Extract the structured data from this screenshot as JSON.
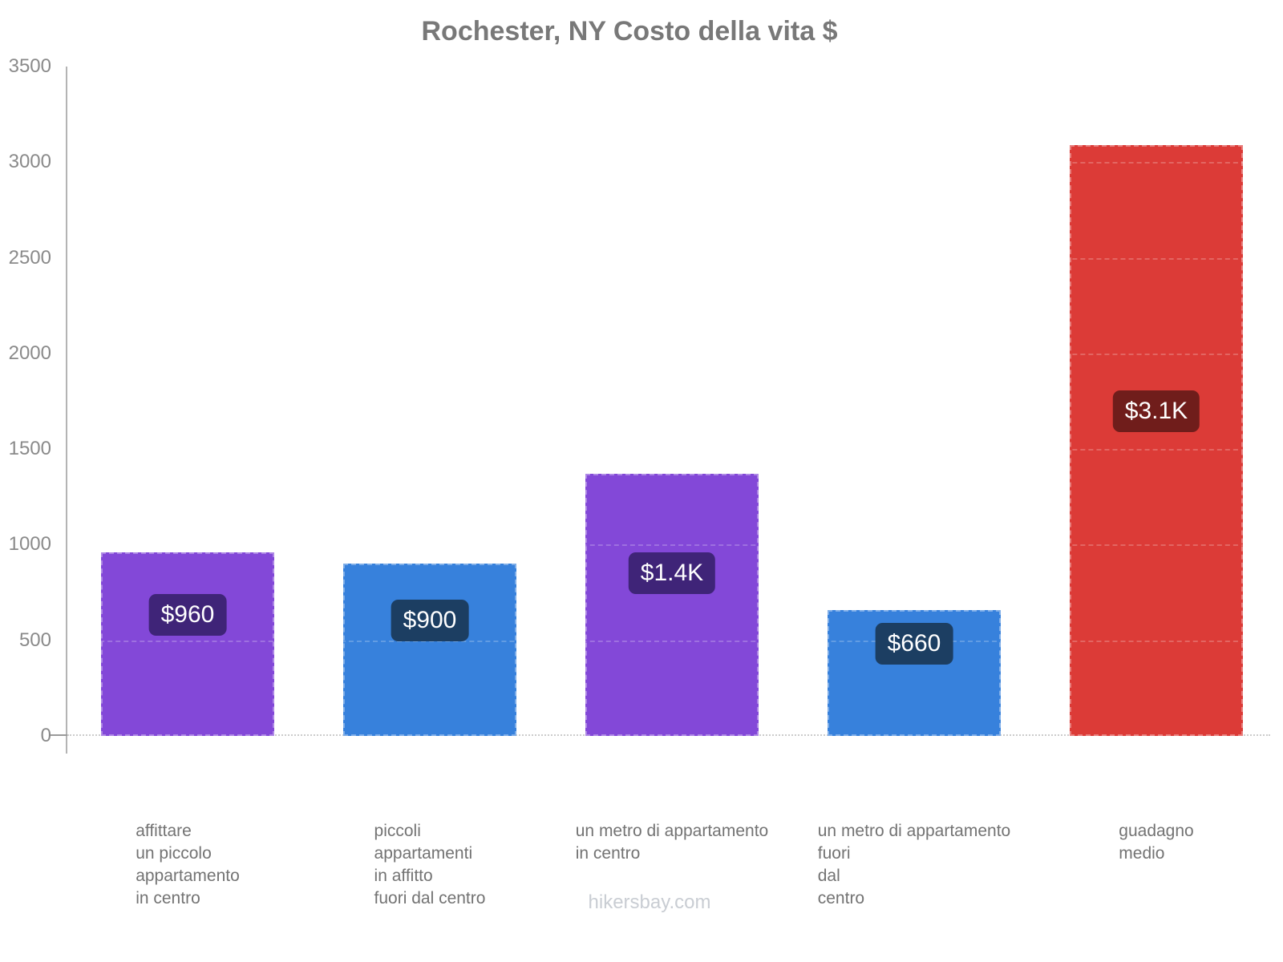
{
  "title": "Rochester, NY Costo della vita $",
  "footer": "hikersbay.com",
  "chart_data": {
    "type": "bar",
    "title": "Rochester, NY Costo della vita $",
    "currency": "$",
    "categories": [
      "affittare un piccolo appartamento in centro",
      "piccoli appartamenti in affitto fuori dal centro",
      "un metro di appartamento in centro",
      "un metro di appartamento fuori dal centro",
      "guadagno medio"
    ],
    "categories_lines": [
      [
        "affittare",
        "un piccolo",
        "appartamento",
        "in centro"
      ],
      [
        "piccoli",
        "appartamenti",
        "in affitto",
        "fuori dal centro"
      ],
      [
        "un metro di appartamento",
        "in centro"
      ],
      [
        "un metro di appartamento",
        "fuori",
        "dal",
        "centro"
      ],
      [
        "guadagno",
        "medio"
      ]
    ],
    "values": [
      960,
      900,
      1370,
      660,
      3090
    ],
    "value_labels": [
      "$960",
      "$900",
      "$1.4K",
      "$660",
      "$3.1K"
    ],
    "bar_colors": [
      "#8348d8",
      "#3781dc",
      "#8348d8",
      "#3781dc",
      "#dc3b37"
    ],
    "badge_colors": [
      "#3f2478",
      "#1c3e62",
      "#3f2478",
      "#1c3e62",
      "#701d1b"
    ],
    "ylim": [
      0,
      3500
    ],
    "yticks": [
      0,
      500,
      1000,
      1500,
      2000,
      2500,
      3000,
      3500
    ],
    "xlabel": "",
    "ylabel": "",
    "grid": "faint dashed horizontal lines visible over bars only",
    "legend": "none"
  }
}
